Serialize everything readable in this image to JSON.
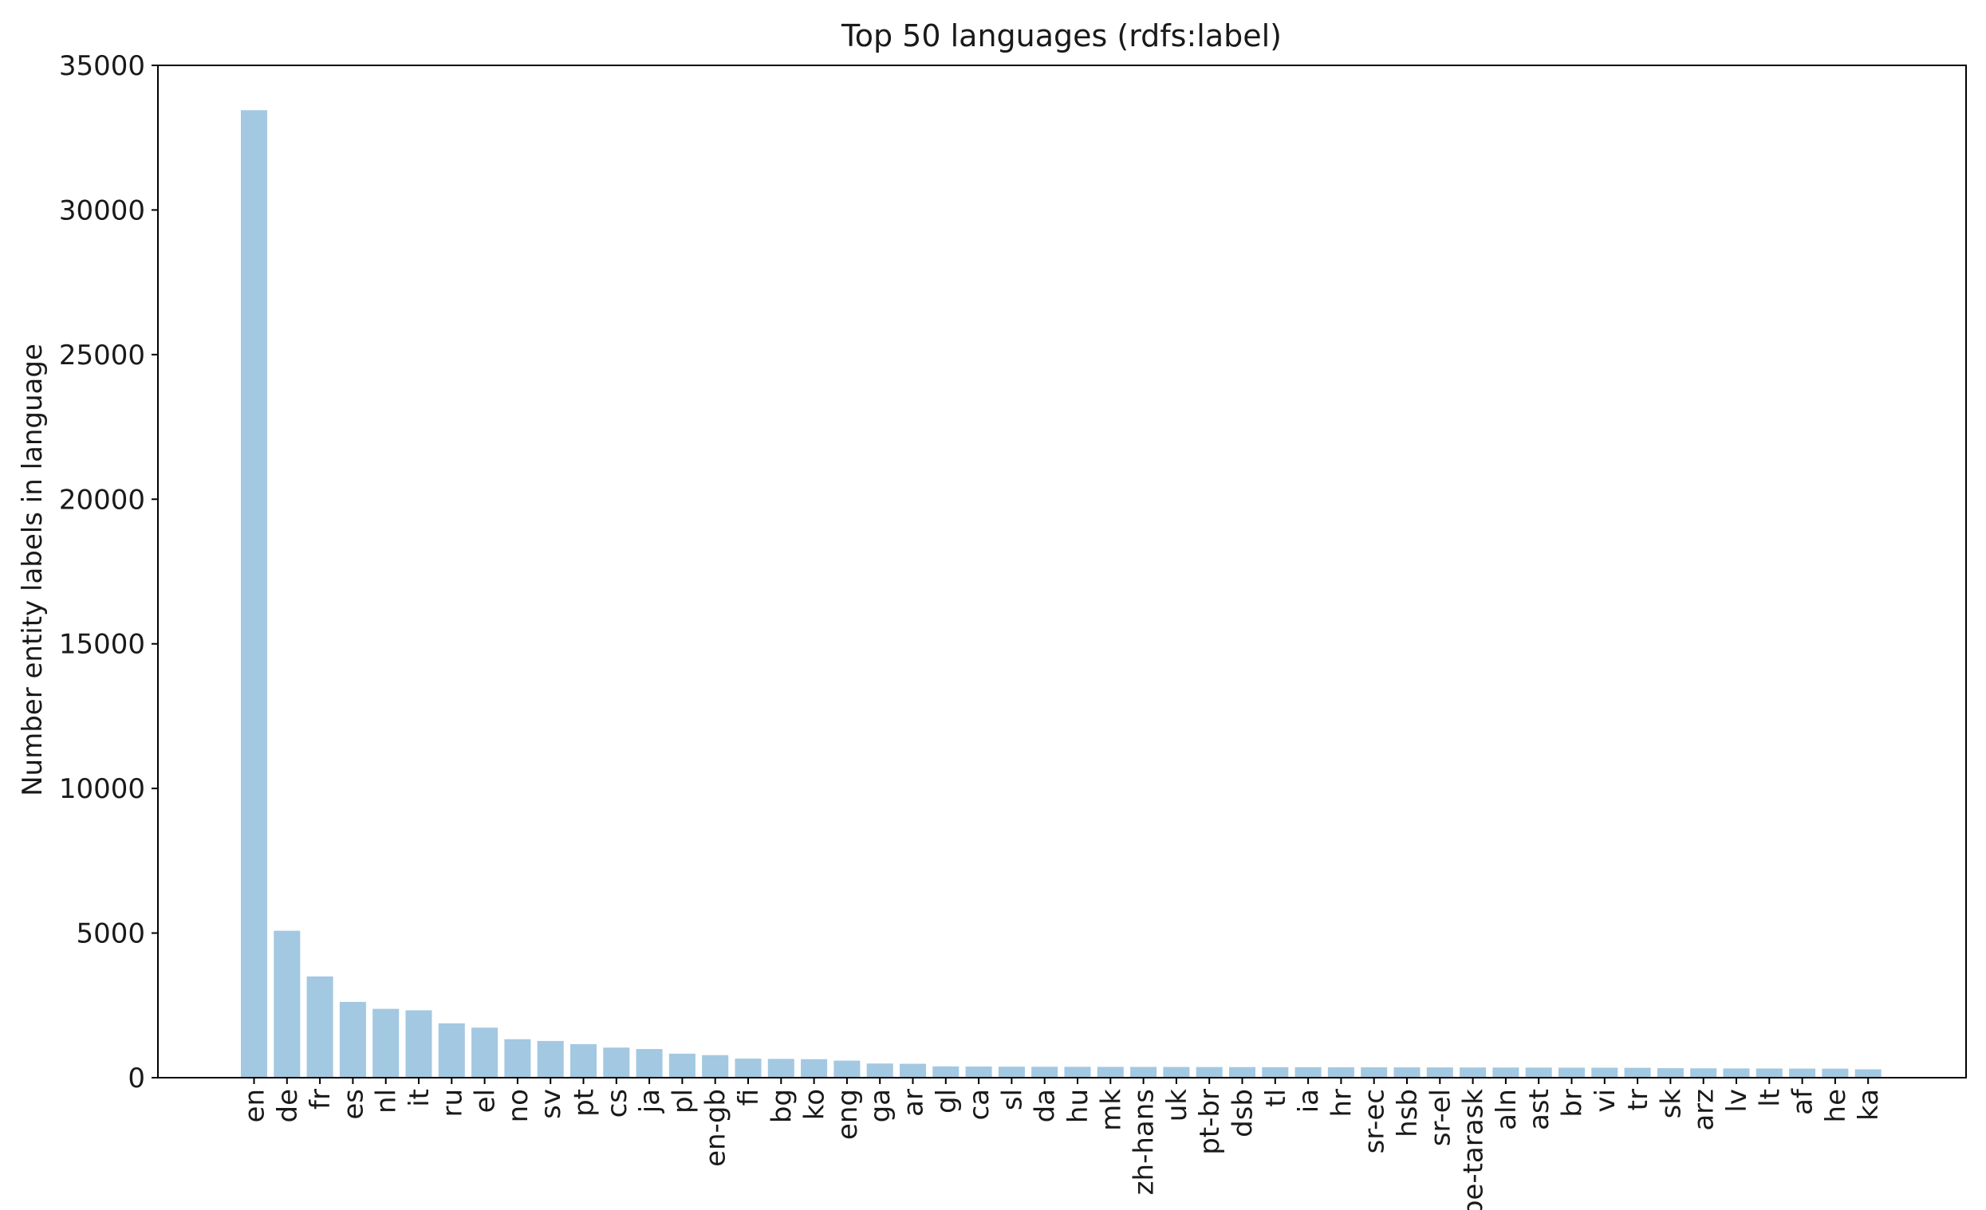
{
  "chart_data": {
    "type": "bar",
    "title": "Top 50 languages (rdfs:label)",
    "xlabel": "",
    "ylabel": "Number entity labels in language",
    "ylim": [
      0,
      35000
    ],
    "yticks": [
      0,
      5000,
      10000,
      15000,
      20000,
      25000,
      30000,
      35000
    ],
    "bar_color": "#a3c8e2",
    "grid": false,
    "categories": [
      "en",
      "de",
      "fr",
      "es",
      "nl",
      "it",
      "ru",
      "el",
      "no",
      "sv",
      "pt",
      "cs",
      "ja",
      "pl",
      "en-gb",
      "fi",
      "bg",
      "ko",
      "eng",
      "ga",
      "ar",
      "gl",
      "ca",
      "sl",
      "da",
      "hu",
      "mk",
      "zh-hans",
      "uk",
      "pt-br",
      "dsb",
      "tl",
      "ia",
      "hr",
      "sr-ec",
      "hsb",
      "sr-el",
      "be-tarask",
      "aln",
      "ast",
      "br",
      "vi",
      "tr",
      "sk",
      "arz",
      "lv",
      "lt",
      "af",
      "he",
      "ka"
    ],
    "values": [
      33450,
      5080,
      3500,
      2620,
      2380,
      2330,
      1880,
      1730,
      1330,
      1270,
      1160,
      1040,
      990,
      830,
      780,
      660,
      650,
      640,
      590,
      490,
      480,
      390,
      385,
      380,
      378,
      376,
      374,
      372,
      370,
      368,
      366,
      364,
      362,
      360,
      358,
      356,
      354,
      352,
      350,
      348,
      346,
      344,
      342,
      330,
      325,
      320,
      318,
      315,
      312,
      290
    ]
  }
}
